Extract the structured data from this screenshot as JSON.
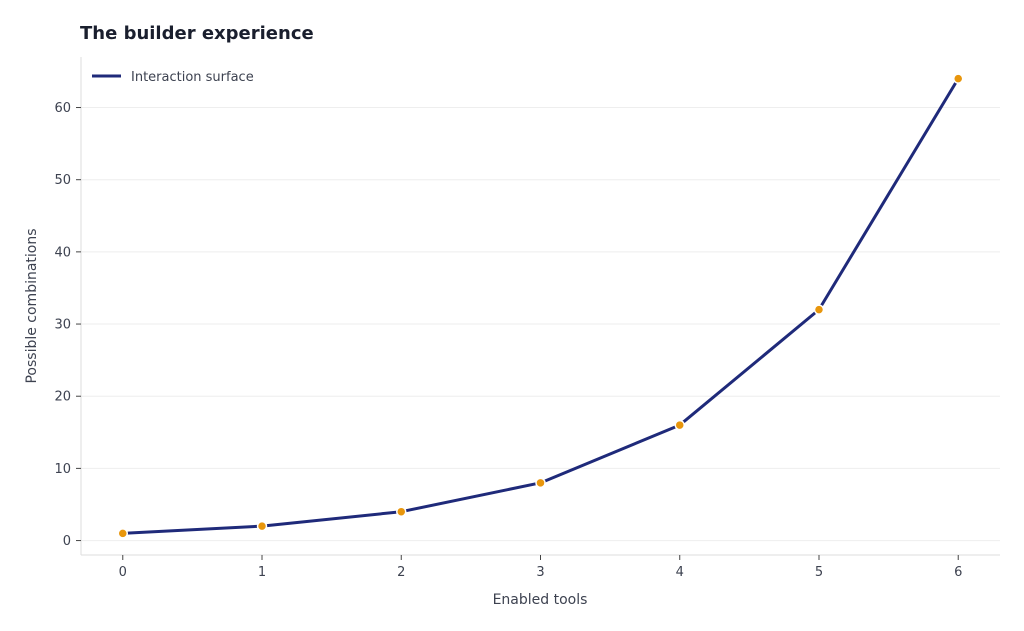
{
  "chart_data": {
    "type": "line",
    "title": "The builder experience",
    "xlabel": "Enabled tools",
    "ylabel": "Possible combinations",
    "x": [
      0,
      1,
      2,
      3,
      4,
      5,
      6
    ],
    "series": [
      {
        "name": "Interaction surface",
        "values": [
          1,
          2,
          4,
          8,
          16,
          32,
          64
        ],
        "color": "#1f2a7a",
        "marker_color": "#e8960c"
      }
    ],
    "xticks": [
      "0",
      "1",
      "2",
      "3",
      "4",
      "5",
      "6"
    ],
    "yticks": [
      "0",
      "10",
      "20",
      "30",
      "40",
      "50",
      "60"
    ],
    "xlim": [
      -0.3,
      6.3
    ],
    "ylim": [
      -2,
      67
    ],
    "grid": "horizontal",
    "legend": "top-left",
    "colors": {
      "axis": "#dddddd",
      "grid": "#eeeeee",
      "text": "#3d4250",
      "title": "#1a1f2e"
    }
  }
}
